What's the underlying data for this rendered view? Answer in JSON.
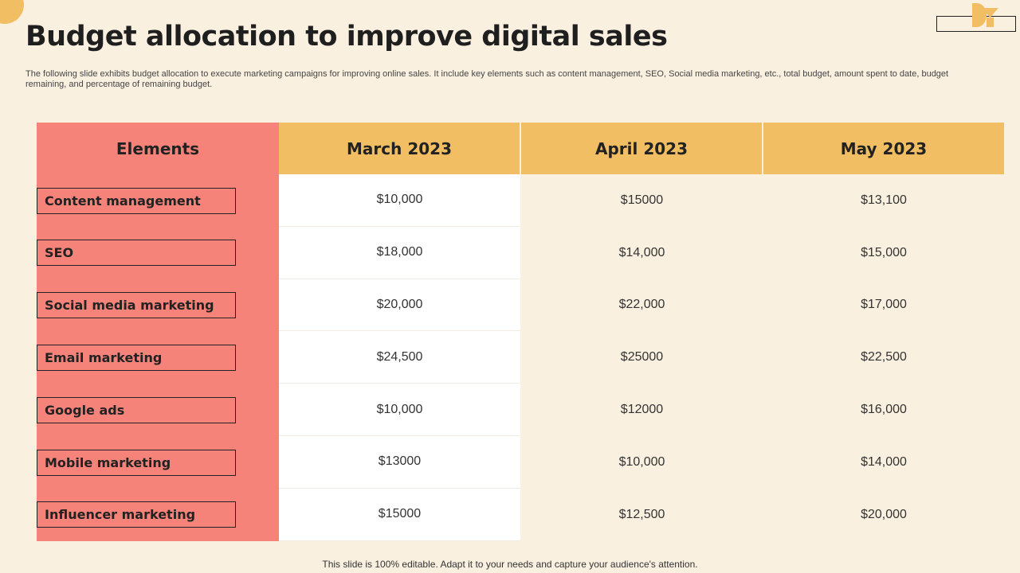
{
  "header": {
    "title": "Budget allocation to improve digital sales",
    "subtitle": "The following slide exhibits budget allocation to execute marketing campaigns for improving online sales. It include key elements such as content management, SEO, Social media marketing, etc., total budget, amount spent to date, budget remaining, and percentage of remaining budget."
  },
  "colors": {
    "accent_yellow": "#F2BE63",
    "accent_coral": "#F5837A",
    "background": "#FAF0E0"
  },
  "table": {
    "columns": [
      "Elements",
      "March 2023",
      "April 2023",
      "May 2023"
    ],
    "rows": [
      {
        "element": "Content management",
        "march": "$10,000",
        "april": "$15000",
        "may": "$13,100"
      },
      {
        "element": "SEO",
        "march": "$18,000",
        "april": "$14,000",
        "may": "$15,000"
      },
      {
        "element": "Social media marketing",
        "march": "$20,000",
        "april": "$22,000",
        "may": "$17,000"
      },
      {
        "element": "Email marketing",
        "march": "$24,500",
        "april": "$25000",
        "may": "$22,500"
      },
      {
        "element": "Google ads",
        "march": "$10,000",
        "april": "$12000",
        "may": "$16,000"
      },
      {
        "element": "Mobile marketing",
        "march": "$13000",
        "april": "$10,000",
        "may": "$14,000"
      },
      {
        "element": "Influencer marketing",
        "march": "$15000",
        "april": "$12,500",
        "may": "$20,000"
      }
    ]
  },
  "footer": {
    "note": "This slide is 100% editable. Adapt it to your needs and capture your audience's attention."
  }
}
